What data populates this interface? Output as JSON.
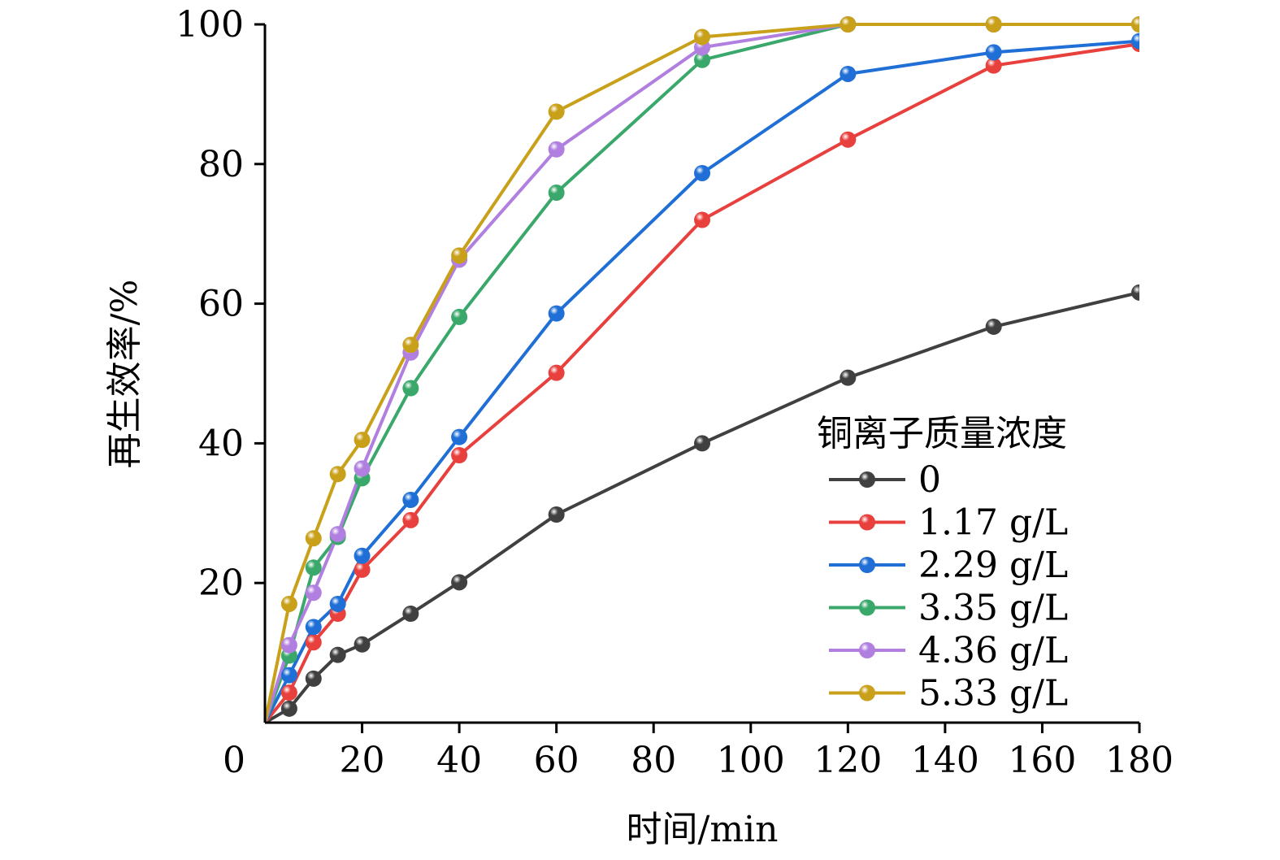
{
  "chart_data": {
    "type": "line",
    "xlabel": "时间/min",
    "ylabel": "再生效率/%",
    "xlim": [
      0,
      180
    ],
    "ylim": [
      0,
      100
    ],
    "x_ticks": [
      0,
      20,
      40,
      60,
      80,
      100,
      120,
      140,
      160,
      180
    ],
    "y_ticks": [
      20,
      40,
      60,
      80,
      100
    ],
    "x_tick_labels": [
      "0",
      "20",
      "40",
      "60",
      "80",
      "100",
      "120",
      "140",
      "160",
      "180"
    ],
    "y_tick_labels": [
      "20",
      "40",
      "60",
      "80",
      "100"
    ],
    "grid": false,
    "legend": {
      "title": "铜离子质量浓度",
      "position": "bottom-right"
    },
    "x": [
      0,
      5,
      10,
      15,
      20,
      30,
      40,
      60,
      90,
      120,
      150,
      180
    ],
    "series": [
      {
        "name": "0",
        "color": "#404040",
        "values": [
          0,
          2,
          6.3,
          9.7,
          11.2,
          15.6,
          20.1,
          29.8,
          40,
          49.4,
          56.7,
          61.6
        ]
      },
      {
        "name": "1.17 g/L",
        "color": "#e8403d",
        "values": [
          0,
          4.3,
          11.5,
          15.6,
          21.9,
          29,
          38.3,
          50.1,
          72,
          83.5,
          94.1,
          97.2
        ]
      },
      {
        "name": "2.29 g/L",
        "color": "#1f6fd6",
        "values": [
          0,
          6.8,
          13.7,
          17,
          23.9,
          31.9,
          40.9,
          58.6,
          78.7,
          92.9,
          96,
          97.6
        ]
      },
      {
        "name": "3.35 g/L",
        "color": "#3aa86b",
        "values": [
          0,
          9.6,
          22.2,
          26.6,
          35,
          47.9,
          58.1,
          75.9,
          94.9,
          100,
          100,
          100
        ]
      },
      {
        "name": "4.36 g/L",
        "color": "#b07fe0",
        "values": [
          0,
          11.1,
          18.6,
          27,
          36.4,
          53,
          66.3,
          82.1,
          96.7,
          100,
          100,
          100
        ]
      },
      {
        "name": "5.33 g/L",
        "color": "#c9a01a",
        "values": [
          0,
          17,
          26.4,
          35.6,
          40.5,
          54.1,
          66.9,
          87.5,
          98.2,
          100,
          100,
          100
        ]
      }
    ]
  }
}
